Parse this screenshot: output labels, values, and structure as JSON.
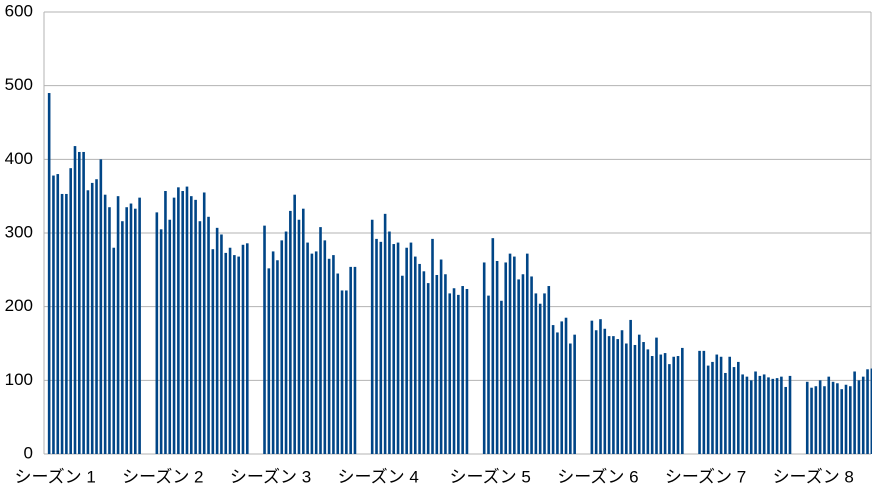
{
  "chart_data": {
    "type": "bar",
    "categories": [
      "シーズン 1",
      null,
      null,
      null,
      null,
      null,
      null,
      null,
      null,
      null,
      null,
      null,
      null,
      null,
      null,
      null,
      null,
      null,
      null,
      null,
      null,
      null,
      null,
      null,
      null,
      "シーズン 2",
      null,
      null,
      null,
      null,
      null,
      null,
      null,
      null,
      null,
      null,
      null,
      null,
      null,
      null,
      null,
      null,
      null,
      null,
      null,
      null,
      null,
      null,
      null,
      null,
      "シーズン 3",
      null,
      null,
      null,
      null,
      null,
      null,
      null,
      null,
      null,
      null,
      null,
      null,
      null,
      null,
      null,
      null,
      null,
      null,
      null,
      null,
      null,
      null,
      null,
      null,
      "シーズン 4",
      null,
      null,
      null,
      null,
      null,
      null,
      null,
      null,
      null,
      null,
      null,
      null,
      null,
      null,
      null,
      null,
      null,
      null,
      null,
      null,
      null,
      null,
      null,
      null,
      null,
      "シーズン 5",
      null,
      null,
      null,
      null,
      null,
      null,
      null,
      null,
      null,
      null,
      null,
      null,
      null,
      null,
      null,
      null,
      null,
      null,
      null,
      null,
      null,
      null,
      null,
      null,
      "シーズン 6",
      null,
      null,
      null,
      null,
      null,
      null,
      null,
      null,
      null,
      null,
      null,
      null,
      null,
      null,
      null,
      null,
      null,
      null,
      null,
      null,
      null,
      null,
      null,
      null,
      "シーズン 7",
      null,
      null,
      null,
      null,
      null,
      null,
      null,
      null,
      null,
      null,
      null,
      null,
      null,
      null,
      null,
      null,
      null,
      null,
      null,
      null,
      null,
      null,
      null,
      null,
      "シーズン 8",
      null,
      null,
      null,
      null,
      null,
      null,
      null,
      null,
      null,
      null,
      null,
      null,
      null,
      null,
      null
    ],
    "values": [
      490,
      378,
      380,
      353,
      353,
      388,
      418,
      410,
      410,
      358,
      368,
      373,
      400,
      352,
      335,
      280,
      350,
      316,
      335,
      340,
      333,
      348,
      null,
      null,
      null,
      328,
      305,
      357,
      318,
      348,
      362,
      357,
      363,
      350,
      345,
      316,
      355,
      322,
      278,
      307,
      298,
      273,
      280,
      270,
      268,
      284,
      286,
      null,
      null,
      null,
      310,
      252,
      275,
      263,
      290,
      302,
      330,
      352,
      318,
      333,
      287,
      272,
      275,
      308,
      290,
      265,
      270,
      245,
      222,
      222,
      254,
      254,
      null,
      null,
      null,
      318,
      292,
      288,
      326,
      302,
      285,
      287,
      242,
      280,
      287,
      268,
      258,
      248,
      232,
      292,
      243,
      264,
      244,
      218,
      225,
      216,
      228,
      224,
      null,
      null,
      null,
      260,
      215,
      293,
      262,
      208,
      260,
      272,
      268,
      237,
      244,
      272,
      241,
      218,
      204,
      218,
      228,
      175,
      165,
      180,
      185,
      150,
      162,
      null,
      null,
      null,
      181,
      168,
      183,
      170,
      160,
      160,
      156,
      168,
      150,
      182,
      148,
      162,
      152,
      142,
      133,
      158,
      135,
      137,
      122,
      132,
      133,
      144,
      null,
      null,
      null,
      140,
      140,
      120,
      125,
      135,
      132,
      110,
      132,
      118,
      125,
      108,
      105,
      100,
      112,
      106,
      108,
      104,
      102,
      103,
      105,
      91,
      106,
      null,
      null,
      null,
      98,
      90,
      92,
      100,
      92,
      105,
      98,
      96,
      88,
      94,
      92,
      112,
      100,
      105,
      115,
      116
    ],
    "color": "#004586",
    "ylim": [
      0,
      600
    ],
    "yticks": [
      0,
      100,
      200,
      300,
      400,
      500,
      600
    ],
    "grid": true
  }
}
